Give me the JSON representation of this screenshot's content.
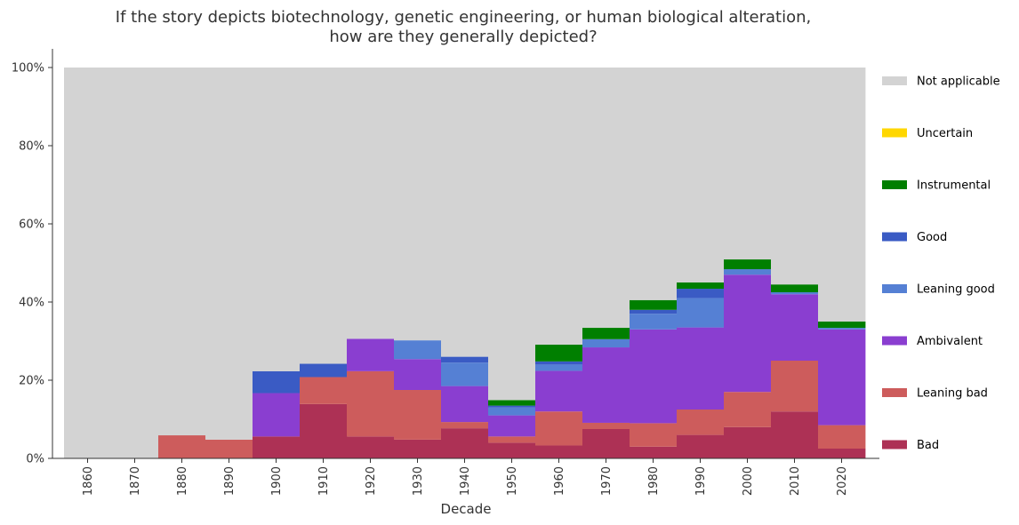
{
  "chart_data": {
    "type": "bar",
    "stacked": true,
    "title": [
      "If the story depicts biotechnology, genetic engineering, or human biological alteration,",
      "how are they generally depicted?"
    ],
    "xlabel": "Decade",
    "ylabel": "",
    "categories": [
      "1860",
      "1870",
      "1880",
      "1890",
      "1900",
      "1910",
      "1920",
      "1930",
      "1940",
      "1950",
      "1960",
      "1970",
      "1980",
      "1990",
      "2000",
      "2010",
      "2020"
    ],
    "ylim": [
      0,
      100
    ],
    "y_ticks": [
      "0%",
      "20%",
      "40%",
      "60%",
      "80%",
      "100%"
    ],
    "y_tick_values": [
      0,
      20,
      40,
      60,
      80,
      100
    ],
    "legend_position": "right",
    "series": [
      {
        "name": "Bad",
        "color": "#ad3155",
        "values": [
          0,
          0,
          0,
          0,
          5.6,
          13.9,
          5.6,
          4.8,
          7.7,
          4.0,
          3.3,
          7.5,
          3.0,
          6.0,
          8.0,
          12.0,
          2.5
        ]
      },
      {
        "name": "Leaning bad",
        "color": "#cd5c5c",
        "values": [
          0,
          0,
          5.9,
          4.8,
          0,
          6.9,
          16.7,
          12.7,
          1.6,
          1.6,
          8.7,
          1.6,
          6.0,
          6.5,
          9.0,
          13.0,
          6.0
        ]
      },
      {
        "name": "Ambivalent",
        "color": "#8a3ed0",
        "values": [
          0,
          0,
          0,
          0,
          11.1,
          0,
          8.3,
          7.9,
          9.2,
          5.4,
          10.4,
          19.3,
          24.0,
          21.0,
          30.0,
          17.0,
          24.5
        ]
      },
      {
        "name": "Leaning good",
        "color": "#5580d4",
        "values": [
          0,
          0,
          0,
          0,
          0,
          0,
          0,
          4.8,
          6.0,
          2.0,
          1.6,
          2.1,
          4.0,
          7.5,
          1.4,
          0.5,
          0.4
        ]
      },
      {
        "name": "Good",
        "color": "#3a5bc4",
        "values": [
          0,
          0,
          0,
          0,
          5.6,
          3.4,
          0,
          0,
          1.5,
          0.5,
          0.8,
          0,
          1.0,
          2.4,
          0,
          0,
          0
        ]
      },
      {
        "name": "Instrumental",
        "color": "#007f00",
        "values": [
          0,
          0,
          0,
          0,
          0,
          0,
          0,
          0,
          0,
          1.4,
          4.3,
          2.9,
          2.5,
          1.6,
          2.5,
          2.0,
          1.6
        ]
      },
      {
        "name": "Uncertain",
        "color": "#ffd700",
        "values": [
          0,
          0,
          0,
          0,
          0,
          0,
          0,
          0,
          0,
          0,
          0,
          0,
          0,
          0,
          0,
          0,
          0
        ]
      },
      {
        "name": "Not applicable",
        "color": "#d3d3d3",
        "values": [
          100,
          100,
          94.1,
          95.2,
          77.7,
          75.8,
          69.4,
          69.8,
          74.0,
          85.1,
          70.9,
          66.6,
          59.5,
          55.0,
          49.1,
          55.5,
          65.0
        ]
      }
    ]
  }
}
